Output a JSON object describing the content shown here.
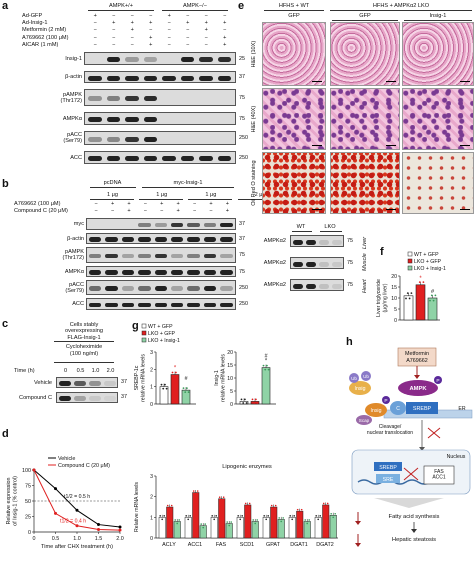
{
  "panel_labels": {
    "a": "a",
    "b": "b",
    "c": "c",
    "d": "d",
    "e": "e",
    "f": "f",
    "g": "g",
    "h": "h"
  },
  "panel_a": {
    "group_headers": [
      "AMPK+/+",
      "AMPK−/−"
    ],
    "conditions": [
      {
        "label": "Ad-GFP",
        "marks": [
          "+",
          "−",
          "−",
          "−",
          "+",
          "−",
          "−",
          "−"
        ]
      },
      {
        "label": "Ad-Insig-1",
        "marks": [
          "−",
          "+",
          "+",
          "+",
          "−",
          "+",
          "+",
          "+"
        ]
      },
      {
        "label": "Metformin (2 mM)",
        "marks": [
          "−",
          "−",
          "+",
          "−",
          "−",
          "−",
          "+",
          "−"
        ]
      },
      {
        "label": "A769662 (100 μM)",
        "marks": [
          "−",
          "−",
          "−",
          "+",
          "−",
          "−",
          "−",
          "+"
        ]
      },
      {
        "label": "AICAR (1 mM)",
        "marks": [
          "−",
          "−",
          "−",
          "+",
          "−",
          "−",
          "−",
          "+"
        ]
      }
    ],
    "rows": [
      {
        "label": "Insig-1",
        "mw": "25"
      },
      {
        "label": "β-actin",
        "mw": "37"
      },
      {
        "label": "pAMPK\n(Thr172)",
        "mw": "75"
      },
      {
        "label": "AMPKα",
        "mw": "75"
      },
      {
        "label": "pACC\n(Ser79)",
        "mw": "250"
      },
      {
        "label": "ACC",
        "mw": "250"
      }
    ]
  },
  "panel_b": {
    "group_headers": [
      "pcDNA",
      "myc-Insig-1"
    ],
    "doses": [
      "1 μg",
      "1 μg",
      "2 μg"
    ],
    "conditions": [
      {
        "label": "A769662 (100 μM)",
        "marks": [
          "−",
          "+",
          "+",
          "−",
          "+",
          "+",
          "−",
          "+",
          "+"
        ]
      },
      {
        "label": "Compound C (20 μM)",
        "marks": [
          "−",
          "−",
          "+",
          "−",
          "−",
          "+",
          "−",
          "−",
          "+"
        ]
      }
    ],
    "rows": [
      {
        "label": "myc",
        "mw": "37"
      },
      {
        "label": "β-actin",
        "mw": "37"
      },
      {
        "label": "pAMPK\n(Thr172)",
        "mw": "75"
      },
      {
        "label": "AMPKα",
        "mw": "75"
      },
      {
        "label": "pACC\n(Ser79)",
        "mw": "250"
      },
      {
        "label": "ACC",
        "mw": "250"
      }
    ]
  },
  "panel_c": {
    "header_lines": [
      "Cells stably",
      "overexpressing",
      "FLAG-Insig-1",
      "Cycloheximide",
      "(100 ng/ml)"
    ],
    "time_label": "Time (h)",
    "times": [
      "0",
      "0.5",
      "1.0",
      "2.0"
    ],
    "rows": [
      {
        "label": "Vehicle",
        "mw": "37"
      },
      {
        "label": "Compound C",
        "mw": "37"
      }
    ]
  },
  "panel_d": {
    "chart_data": {
      "type": "line",
      "xlabel": "Time after CHX treatment (h)",
      "ylabel": "Relative expression\nof Insig-1 (% control)",
      "x": [
        0,
        0.5,
        1.0,
        1.5,
        2.0
      ],
      "ylim": [
        0,
        100
      ],
      "yticks": [
        0,
        25,
        50,
        75,
        100
      ],
      "xticks": [
        "0",
        "0.5",
        "1.0",
        "1.5",
        "2.0"
      ],
      "series": [
        {
          "name": "Vehicle",
          "color": "#000000",
          "values": [
            100,
            70,
            35,
            12,
            8
          ]
        },
        {
          "name": "Compound C (20 μM)",
          "color": "#e02020",
          "values": [
            100,
            30,
            10,
            4,
            3
          ]
        }
      ],
      "annotations": [
        "t1/2 = 0.5 h",
        "t1/2 = 0.4 h"
      ]
    }
  },
  "panel_e": {
    "headers": [
      "HFHS + WT",
      "HFHS + AMPKα2 LKO"
    ],
    "subheaders": [
      "GFP",
      "GFP",
      "Insig-1"
    ],
    "row_labels": [
      "H&E (10X)",
      "H&E (40X)",
      "Oil Red O staining"
    ],
    "blot_headers": [
      "WT",
      "LKO"
    ],
    "blot_rows": [
      {
        "label": "AMPKα2",
        "tissue": "Liver",
        "mw": "75"
      },
      {
        "label": "AMPKα2",
        "tissue": "Muscle",
        "mw": "75"
      },
      {
        "label": "AMPKα2",
        "tissue": "Heart",
        "mw": "75"
      }
    ]
  },
  "panel_f": {
    "legend": [
      "WT + GFP",
      "LKO + GFP",
      "LKO + Insig-1"
    ],
    "chart_data": {
      "type": "bar",
      "ylabel": "Liver triglyceride\n(μg/mg liver)",
      "categories": [
        "WT + GFP",
        "LKO + GFP",
        "LKO + Insig-1"
      ],
      "values": [
        11,
        16,
        10
      ],
      "ylim": [
        0,
        20
      ],
      "yticks": [
        0,
        5,
        10,
        15,
        20
      ],
      "colors": [
        "#ffffff",
        "#e02020",
        "#8fd3a6"
      ],
      "annotations": [
        "*",
        "#"
      ]
    }
  },
  "panel_g": {
    "legend": [
      "WT + GFP",
      "LKO + GFP",
      "LKO + Insig-1"
    ],
    "srebp": {
      "chart_data": {
        "type": "bar",
        "ylabel": "SREBP-1c\nrelative mRNA levels",
        "categories": [
          "WT + GFP",
          "LKO + GFP",
          "LKO + Insig-1"
        ],
        "values": [
          1.0,
          1.7,
          0.8
        ],
        "ylim": [
          0,
          3
        ],
        "yticks": [
          0,
          1,
          2,
          3
        ],
        "annotations": [
          "*",
          "#"
        ]
      }
    },
    "insig": {
      "chart_data": {
        "type": "bar",
        "ylabel": "Insig-1\nrelative mRNA levels",
        "categories": [
          "WT + GFP",
          "LKO + GFP",
          "LKO + Insig-1"
        ],
        "values": [
          1.0,
          1.0,
          14
        ],
        "ylim": [
          0,
          20
        ],
        "yticks": [
          0,
          5,
          10,
          15,
          20
        ],
        "annotations": [
          "*",
          "#"
        ]
      }
    },
    "lipogenic": {
      "title": "Lipogenic enzymes",
      "chart_data": {
        "type": "bar",
        "ylabel": "Relative mRNA levels",
        "categories": [
          "ACLY",
          "ACC1",
          "FAS",
          "SCD1",
          "GPAT",
          "DGAT1",
          "DGAT2"
        ],
        "ylim": [
          0,
          3
        ],
        "yticks": [
          0,
          1,
          2,
          3
        ],
        "series": [
          {
            "name": "WT + GFP",
            "values": [
              1.0,
              1.0,
              1.0,
              1.0,
              1.0,
              1.0,
              1.0
            ]
          },
          {
            "name": "LKO + GFP",
            "values": [
              1.5,
              2.2,
              1.9,
              1.6,
              1.5,
              1.3,
              1.6
            ]
          },
          {
            "name": "LKO + Insig-1",
            "values": [
              0.8,
              0.6,
              0.7,
              0.8,
              0.9,
              0.8,
              1.1
            ]
          }
        ]
      }
    }
  },
  "panel_h": {
    "drug_lines": [
      "Metformin",
      "A769662"
    ],
    "labels": {
      "ampk": "AMPK",
      "p": "P",
      "insig": "Insig",
      "scap": "Scap",
      "srebp": "SREBP",
      "er": "ER",
      "ub": "Ub",
      "c": "C",
      "n": "N",
      "cleavage": "Cleavage/\nnuclear translocation",
      "nucleus": "Nucleus",
      "sre": "SRE",
      "nsrebp": "SREBP",
      "fas": "FAS\nACC1",
      "fas_out": "Fatty acid synthesis",
      "steatosis": "Hepatic steatosis"
    }
  }
}
